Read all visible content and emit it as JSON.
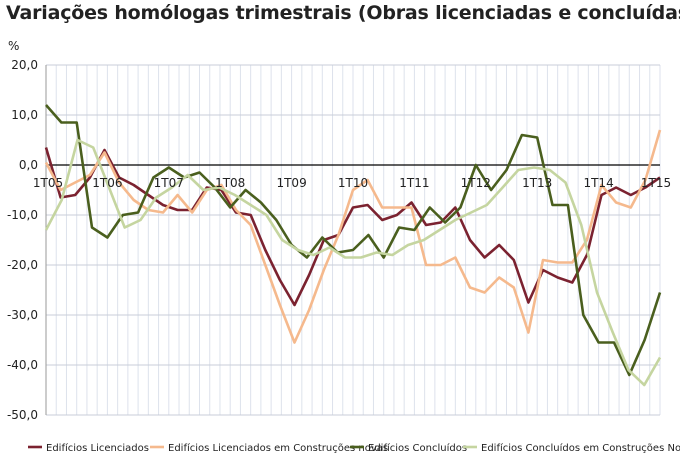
{
  "chart_data": {
    "type": "line",
    "title": "Variações homólogas trimestrais (Obras licenciadas e concluídas)",
    "ylabel": "%",
    "ylim": [
      -50,
      20
    ],
    "yticks": [
      "20,0",
      "10,0",
      "0,0",
      "-10,0",
      "-20,0",
      "-30,0",
      "-40,0",
      "-50,0"
    ],
    "grid": true,
    "legend_position": "bottom",
    "x_start": "2005-01",
    "x_end": "2015-04",
    "x_tick_labels": [
      {
        "label": "1T05",
        "index": 0
      },
      {
        "label": "1T06",
        "index": 6
      },
      {
        "label": "1T07",
        "index": 12
      },
      {
        "label": "1T08",
        "index": 18
      },
      {
        "label": "1T09",
        "index": 24
      },
      {
        "label": "1T10",
        "index": 30
      },
      {
        "label": "1T11",
        "index": 36
      },
      {
        "label": "1T12",
        "index": 42
      },
      {
        "label": "1T13",
        "index": 48
      },
      {
        "label": "1T14",
        "index": 54
      },
      {
        "label": "1T15",
        "index": 60
      }
    ],
    "series": [
      {
        "name": "Edifícios Licenciados",
        "color": "#7b2230",
        "values": [
          3.5,
          -6.5,
          -6.0,
          -2.5,
          3.0,
          -2.5,
          -4.0,
          -6.0,
          -8.0,
          -9.0,
          -9.0,
          -4.5,
          -5.0,
          -9.5,
          -10.0,
          -17.0,
          -23.0,
          -28.0,
          -22.0,
          -15.0,
          -14.0,
          -8.5,
          -8.0,
          -11.0,
          -10.0,
          -7.5,
          -12.0,
          -11.5,
          -8.5,
          -15.0,
          -18.5,
          -16.0,
          -19.0,
          -27.5,
          -21.0,
          -22.5,
          -23.5,
          -18.0,
          -6.0,
          -4.5,
          -6.0,
          -4.5,
          -2.5
        ]
      },
      {
        "name": "Edifícios Licenciados em Construções novas",
        "color": "#f5b98d",
        "values": [
          0.5,
          -5.0,
          -3.5,
          -2.0,
          2.5,
          -3.5,
          -7.0,
          -9.0,
          -9.5,
          -6.0,
          -9.5,
          -5.0,
          -4.0,
          -9.0,
          -12.0,
          -20.0,
          -28.0,
          -35.5,
          -29.0,
          -21.0,
          -14.0,
          -5.0,
          -3.0,
          -8.5,
          -8.5,
          -8.5,
          -20.0,
          -20.0,
          -18.5,
          -24.5,
          -25.5,
          -22.5,
          -24.5,
          -33.5,
          -19.0,
          -19.5,
          -19.5,
          -15.0,
          -4.0,
          -7.5,
          -8.5,
          -3.0,
          7.0
        ]
      },
      {
        "name": "Edifícios Concluídos",
        "color": "#4a5f1e",
        "values": [
          12.0,
          8.5,
          8.5,
          -12.5,
          -14.5,
          -10.0,
          -9.5,
          -2.5,
          -0.5,
          -2.5,
          -1.5,
          -4.5,
          -8.5,
          -5.0,
          -7.5,
          -11.0,
          -16.0,
          -18.5,
          -14.5,
          -17.5,
          -17.0,
          -14.0,
          -18.5,
          -12.5,
          -13.0,
          -8.5,
          -11.5,
          -8.5,
          0.0,
          -5.0,
          -1.0,
          6.0,
          5.5,
          -8.0,
          -8.0,
          -30.0,
          -35.5,
          -35.5,
          -42.0,
          -35.0,
          -25.5
        ]
      },
      {
        "name": "Edifícios Concluídos em Construções Novas",
        "color": "#c5d5a0",
        "values": [
          -13.0,
          -7.0,
          5.0,
          3.5,
          -4.5,
          -12.5,
          -11.0,
          -6.5,
          -4.5,
          -2.0,
          -5.0,
          -4.5,
          -6.0,
          -8.0,
          -10.0,
          -15.0,
          -17.0,
          -18.0,
          -16.5,
          -18.5,
          -18.5,
          -17.5,
          -18.0,
          -16.0,
          -15.0,
          -13.0,
          -11.0,
          -9.5,
          -8.0,
          -4.5,
          -1.0,
          -0.5,
          -1.0,
          -3.5,
          -12.0,
          -25.5,
          -33.5,
          -41.0,
          -44.0,
          -38.5
        ]
      }
    ]
  }
}
